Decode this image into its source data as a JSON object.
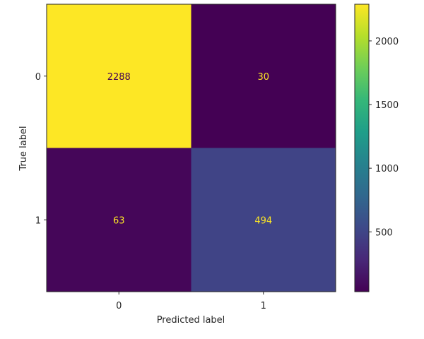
{
  "chart_data": {
    "type": "heatmap",
    "title": "",
    "xlabel": "Predicted label",
    "ylabel": "True label",
    "x_categories": [
      "0",
      "1"
    ],
    "y_categories": [
      "0",
      "1"
    ],
    "values": [
      [
        2288,
        30
      ],
      [
        63,
        494
      ]
    ],
    "colormap": "viridis",
    "colorbar": {
      "range": [
        30,
        2288
      ],
      "ticks": [
        500,
        1000,
        1500,
        2000
      ],
      "tick_labels": [
        "500",
        "1000",
        "1500",
        "2000"
      ]
    },
    "text_color_dark_cell": "#fde725",
    "text_color_light_cell": "#440154"
  }
}
